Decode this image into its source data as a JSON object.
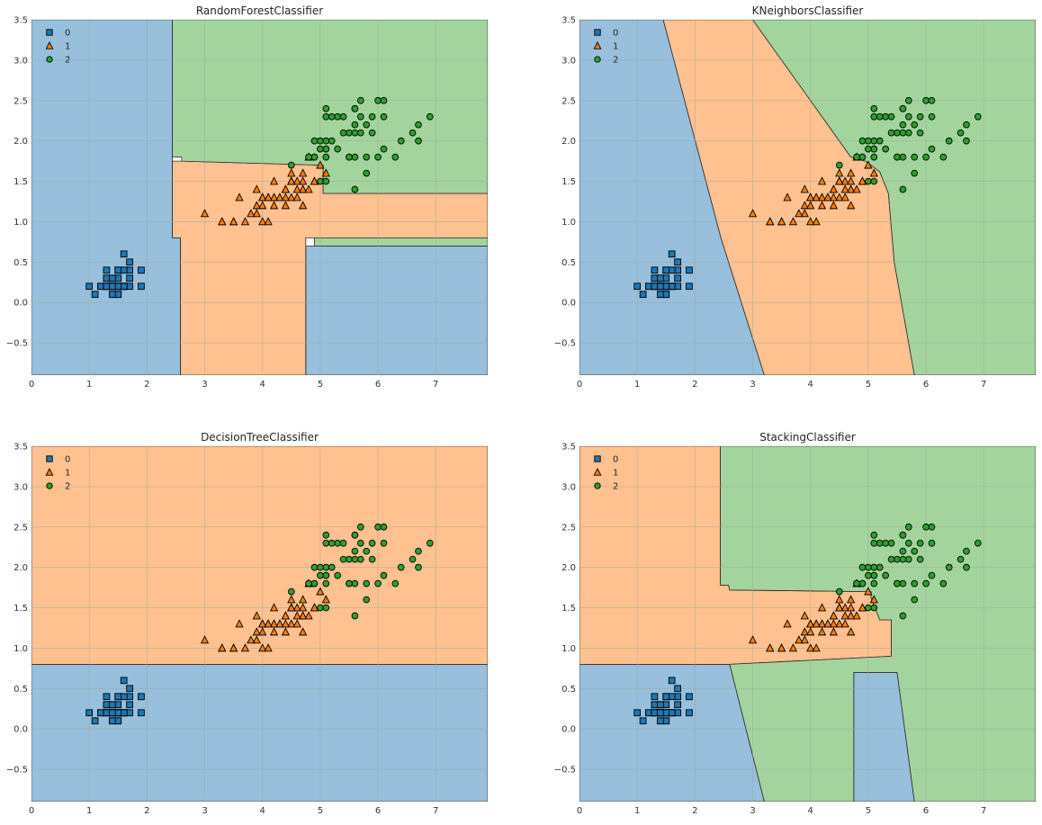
{
  "figure": {
    "class_colors": {
      "0": "#1f77b4",
      "1": "#ff7f0e",
      "2": "#2ca02c"
    },
    "region_colors": {
      "0": "#98bfdc",
      "1": "#ffc190",
      "2": "#a4d49e"
    },
    "grid_color": "#9aa59a"
  },
  "chart_data": [
    {
      "type": "scatter",
      "title": "RandomForestClassifier",
      "xlabel": "",
      "ylabel": "",
      "xlim": [
        0,
        7.9
      ],
      "ylim": [
        -0.9,
        3.5
      ],
      "x_ticks": [
        "0",
        "1",
        "2",
        "3",
        "4",
        "5",
        "6",
        "7"
      ],
      "y_ticks": [
        "−0.5",
        "0.0",
        "0.5",
        "1.0",
        "1.5",
        "2.0",
        "2.5",
        "3.0",
        "3.5"
      ],
      "grid": true,
      "legend": {
        "position": "top-left",
        "entries": [
          "0",
          "1",
          "2"
        ],
        "markers": [
          "square",
          "triangle",
          "circle"
        ]
      },
      "regions": [
        {
          "class": 0,
          "polygon": [
            [
              0,
              -0.9
            ],
            [
              2.58,
              -0.9
            ],
            [
              2.58,
              0.8
            ],
            [
              2.44,
              0.8
            ],
            [
              2.44,
              3.5
            ],
            [
              0,
              3.5
            ]
          ]
        },
        {
          "class": 0,
          "polygon": [
            [
              4.75,
              -0.9
            ],
            [
              7.9,
              -0.9
            ],
            [
              7.9,
              0.7
            ],
            [
              4.75,
              0.7
            ]
          ]
        },
        {
          "class": 1,
          "polygon": [
            [
              2.58,
              -0.9
            ],
            [
              4.75,
              -0.9
            ],
            [
              4.75,
              0.8
            ],
            [
              7.9,
              0.8
            ],
            [
              7.9,
              1.35
            ],
            [
              5.05,
              1.35
            ],
            [
              5.05,
              1.7
            ],
            [
              2.6,
              1.75
            ],
            [
              2.44,
              1.75
            ],
            [
              2.44,
              0.8
            ],
            [
              2.58,
              0.8
            ]
          ]
        },
        {
          "class": 2,
          "polygon": [
            [
              2.44,
              3.5
            ],
            [
              7.9,
              3.5
            ],
            [
              7.9,
              1.35
            ],
            [
              5.05,
              1.35
            ],
            [
              5.05,
              1.7
            ],
            [
              2.6,
              1.75
            ],
            [
              2.6,
              1.8
            ],
            [
              2.44,
              1.8
            ]
          ]
        },
        {
          "class": 2,
          "polygon": [
            [
              4.9,
              0.8
            ],
            [
              7.9,
              0.8
            ],
            [
              7.9,
              0.7
            ],
            [
              4.9,
              0.7
            ]
          ]
        }
      ]
    },
    {
      "type": "scatter",
      "title": "KNeighborsClassifier",
      "xlabel": "",
      "ylabel": "",
      "xlim": [
        0,
        7.9
      ],
      "ylim": [
        -0.9,
        3.5
      ],
      "x_ticks": [
        "0",
        "1",
        "2",
        "3",
        "4",
        "5",
        "6",
        "7"
      ],
      "y_ticks": [
        "−0.5",
        "0.0",
        "0.5",
        "1.0",
        "1.5",
        "2.0",
        "2.5",
        "3.0",
        "3.5"
      ],
      "grid": true,
      "legend": {
        "position": "top-left",
        "entries": [
          "0",
          "1",
          "2"
        ],
        "markers": [
          "square",
          "triangle",
          "circle"
        ]
      },
      "regions": [
        {
          "class": 0,
          "polygon": [
            [
              0,
              -0.9
            ],
            [
              3.2,
              -0.9
            ],
            [
              2.45,
              0.8
            ],
            [
              1.45,
              3.5
            ],
            [
              0,
              3.5
            ]
          ]
        },
        {
          "class": 1,
          "polygon": [
            [
              3.2,
              -0.9
            ],
            [
              5.8,
              -0.9
            ],
            [
              5.45,
              0.5
            ],
            [
              5.35,
              1.35
            ],
            [
              5.2,
              1.62
            ],
            [
              4.95,
              1.75
            ],
            [
              4.7,
              1.8
            ],
            [
              3.8,
              2.7
            ],
            [
              3.0,
              3.5
            ],
            [
              1.45,
              3.5
            ],
            [
              2.45,
              0.8
            ]
          ]
        },
        {
          "class": 2,
          "polygon": [
            [
              5.8,
              -0.9
            ],
            [
              7.9,
              -0.9
            ],
            [
              7.9,
              3.5
            ],
            [
              3.0,
              3.5
            ],
            [
              3.8,
              2.7
            ],
            [
              4.7,
              1.8
            ],
            [
              4.95,
              1.75
            ],
            [
              5.2,
              1.62
            ],
            [
              5.35,
              1.35
            ],
            [
              5.45,
              0.5
            ]
          ]
        }
      ]
    },
    {
      "type": "scatter",
      "title": "DecisionTreeClassifier",
      "xlabel": "",
      "ylabel": "",
      "xlim": [
        0,
        7.9
      ],
      "ylim": [
        -0.9,
        3.5
      ],
      "x_ticks": [
        "0",
        "1",
        "2",
        "3",
        "4",
        "5",
        "6",
        "7"
      ],
      "y_ticks": [
        "−0.5",
        "0.0",
        "0.5",
        "1.0",
        "1.5",
        "2.0",
        "2.5",
        "3.0",
        "3.5"
      ],
      "grid": true,
      "legend": {
        "position": "top-left",
        "entries": [
          "0",
          "1",
          "2"
        ],
        "markers": [
          "square",
          "triangle",
          "circle"
        ]
      },
      "regions": [
        {
          "class": 0,
          "polygon": [
            [
              0,
              -0.9
            ],
            [
              7.9,
              -0.9
            ],
            [
              7.9,
              0.8
            ],
            [
              0,
              0.8
            ]
          ]
        },
        {
          "class": 1,
          "polygon": [
            [
              0,
              0.8
            ],
            [
              7.9,
              0.8
            ],
            [
              7.9,
              3.5
            ],
            [
              0,
              3.5
            ]
          ]
        }
      ]
    },
    {
      "type": "scatter",
      "title": "StackingClassifier",
      "xlabel": "",
      "ylabel": "",
      "xlim": [
        0,
        7.9
      ],
      "ylim": [
        -0.9,
        3.5
      ],
      "x_ticks": [
        "0",
        "1",
        "2",
        "3",
        "4",
        "5",
        "6",
        "7"
      ],
      "y_ticks": [
        "−0.5",
        "0.0",
        "0.5",
        "1.0",
        "1.5",
        "2.0",
        "2.5",
        "3.0",
        "3.5"
      ],
      "grid": true,
      "legend": {
        "position": "top-left",
        "entries": [
          "0",
          "1",
          "2"
        ],
        "markers": [
          "square",
          "triangle",
          "circle"
        ]
      },
      "regions": [
        {
          "class": 0,
          "polygon": [
            [
              0,
              -0.9
            ],
            [
              3.2,
              -0.9
            ],
            [
              2.6,
              0.8
            ],
            [
              0,
              0.8
            ]
          ]
        },
        {
          "class": 0,
          "polygon": [
            [
              4.75,
              -0.9
            ],
            [
              5.8,
              -0.9
            ],
            [
              5.5,
              0.7
            ],
            [
              4.75,
              0.7
            ]
          ]
        },
        {
          "class": 1,
          "polygon": [
            [
              0,
              0.8
            ],
            [
              2.6,
              0.8
            ],
            [
              5.4,
              0.9
            ],
            [
              5.4,
              1.35
            ],
            [
              5.2,
              1.35
            ],
            [
              5.05,
              1.62
            ],
            [
              5.05,
              1.7
            ],
            [
              2.6,
              1.72
            ],
            [
              2.58,
              1.78
            ],
            [
              2.44,
              1.78
            ],
            [
              2.44,
              3.5
            ],
            [
              0,
              3.5
            ]
          ]
        },
        {
          "class": 2,
          "polygon": [
            [
              3.2,
              -0.9
            ],
            [
              4.75,
              -0.9
            ],
            [
              4.75,
              0.7
            ],
            [
              5.5,
              0.7
            ],
            [
              5.8,
              -0.9
            ],
            [
              7.9,
              -0.9
            ],
            [
              7.9,
              3.5
            ],
            [
              2.44,
              3.5
            ],
            [
              2.44,
              1.78
            ],
            [
              2.58,
              1.78
            ],
            [
              2.6,
              1.72
            ],
            [
              5.05,
              1.7
            ],
            [
              5.05,
              1.62
            ],
            [
              5.2,
              1.35
            ],
            [
              5.4,
              1.35
            ],
            [
              5.4,
              0.9
            ],
            [
              2.6,
              0.8
            ]
          ]
        }
      ]
    }
  ],
  "points": {
    "class_0": [
      [
        1.4,
        0.2
      ],
      [
        1.4,
        0.2
      ],
      [
        1.3,
        0.2
      ],
      [
        1.5,
        0.2
      ],
      [
        1.4,
        0.2
      ],
      [
        1.7,
        0.4
      ],
      [
        1.4,
        0.3
      ],
      [
        1.5,
        0.2
      ],
      [
        1.4,
        0.2
      ],
      [
        1.5,
        0.1
      ],
      [
        1.5,
        0.2
      ],
      [
        1.6,
        0.2
      ],
      [
        1.4,
        0.1
      ],
      [
        1.1,
        0.1
      ],
      [
        1.2,
        0.2
      ],
      [
        1.5,
        0.4
      ],
      [
        1.3,
        0.4
      ],
      [
        1.4,
        0.3
      ],
      [
        1.7,
        0.3
      ],
      [
        1.5,
        0.3
      ],
      [
        1.7,
        0.2
      ],
      [
        1.5,
        0.4
      ],
      [
        1.0,
        0.2
      ],
      [
        1.7,
        0.5
      ],
      [
        1.9,
        0.2
      ],
      [
        1.6,
        0.2
      ],
      [
        1.6,
        0.4
      ],
      [
        1.5,
        0.2
      ],
      [
        1.4,
        0.2
      ],
      [
        1.6,
        0.2
      ],
      [
        1.6,
        0.2
      ],
      [
        1.5,
        0.4
      ],
      [
        1.5,
        0.1
      ],
      [
        1.4,
        0.2
      ],
      [
        1.5,
        0.2
      ],
      [
        1.2,
        0.2
      ],
      [
        1.3,
        0.2
      ],
      [
        1.4,
        0.1
      ],
      [
        1.3,
        0.2
      ],
      [
        1.5,
        0.2
      ],
      [
        1.3,
        0.3
      ],
      [
        1.3,
        0.3
      ],
      [
        1.3,
        0.2
      ],
      [
        1.6,
        0.6
      ],
      [
        1.9,
        0.4
      ],
      [
        1.4,
        0.3
      ],
      [
        1.6,
        0.2
      ],
      [
        1.4,
        0.2
      ],
      [
        1.5,
        0.2
      ],
      [
        1.4,
        0.2
      ]
    ],
    "class_1": [
      [
        4.7,
        1.4
      ],
      [
        4.5,
        1.5
      ],
      [
        4.9,
        1.5
      ],
      [
        4.0,
        1.3
      ],
      [
        4.6,
        1.5
      ],
      [
        4.5,
        1.3
      ],
      [
        4.7,
        1.6
      ],
      [
        3.3,
        1.0
      ],
      [
        4.6,
        1.3
      ],
      [
        3.9,
        1.4
      ],
      [
        3.5,
        1.0
      ],
      [
        4.2,
        1.5
      ],
      [
        4.0,
        1.0
      ],
      [
        4.7,
        1.4
      ],
      [
        3.6,
        1.3
      ],
      [
        4.4,
        1.4
      ],
      [
        4.5,
        1.5
      ],
      [
        4.1,
        1.0
      ],
      [
        4.5,
        1.5
      ],
      [
        3.9,
        1.1
      ],
      [
        4.8,
        1.8
      ],
      [
        4.0,
        1.3
      ],
      [
        4.9,
        1.5
      ],
      [
        4.7,
        1.2
      ],
      [
        4.3,
        1.3
      ],
      [
        4.4,
        1.4
      ],
      [
        4.8,
        1.4
      ],
      [
        5.0,
        1.7
      ],
      [
        4.5,
        1.5
      ],
      [
        3.5,
        1.0
      ],
      [
        3.8,
        1.1
      ],
      [
        3.7,
        1.0
      ],
      [
        3.9,
        1.2
      ],
      [
        5.1,
        1.6
      ],
      [
        4.5,
        1.5
      ],
      [
        4.5,
        1.6
      ],
      [
        4.7,
        1.5
      ],
      [
        4.4,
        1.3
      ],
      [
        4.1,
        1.3
      ],
      [
        4.0,
        1.3
      ],
      [
        4.4,
        1.2
      ],
      [
        4.6,
        1.4
      ],
      [
        4.0,
        1.2
      ],
      [
        3.3,
        1.0
      ],
      [
        4.2,
        1.3
      ],
      [
        4.2,
        1.2
      ],
      [
        4.2,
        1.3
      ],
      [
        4.3,
        1.3
      ],
      [
        3.0,
        1.1
      ],
      [
        4.1,
        1.3
      ]
    ],
    "class_2": [
      [
        6.0,
        2.5
      ],
      [
        5.1,
        1.9
      ],
      [
        5.9,
        2.1
      ],
      [
        5.6,
        1.8
      ],
      [
        5.8,
        2.2
      ],
      [
        6.6,
        2.1
      ],
      [
        4.5,
        1.7
      ],
      [
        6.3,
        1.8
      ],
      [
        5.8,
        1.8
      ],
      [
        6.1,
        2.5
      ],
      [
        5.1,
        2.0
      ],
      [
        5.3,
        1.9
      ],
      [
        5.5,
        2.1
      ],
      [
        5.0,
        2.0
      ],
      [
        5.1,
        2.4
      ],
      [
        5.3,
        2.3
      ],
      [
        5.5,
        1.8
      ],
      [
        6.7,
        2.2
      ],
      [
        6.9,
        2.3
      ],
      [
        5.0,
        1.5
      ],
      [
        5.7,
        2.3
      ],
      [
        4.9,
        2.0
      ],
      [
        6.7,
        2.0
      ],
      [
        4.9,
        1.8
      ],
      [
        5.7,
        2.1
      ],
      [
        6.0,
        1.8
      ],
      [
        4.8,
        1.8
      ],
      [
        4.9,
        1.8
      ],
      [
        5.6,
        2.1
      ],
      [
        5.8,
        1.6
      ],
      [
        6.1,
        1.9
      ],
      [
        6.4,
        2.0
      ],
      [
        5.6,
        2.2
      ],
      [
        5.1,
        1.5
      ],
      [
        5.6,
        1.4
      ],
      [
        6.1,
        2.3
      ],
      [
        5.6,
        2.4
      ],
      [
        5.5,
        1.8
      ],
      [
        4.8,
        1.8
      ],
      [
        5.4,
        2.1
      ],
      [
        5.6,
        2.4
      ],
      [
        5.1,
        2.3
      ],
      [
        5.1,
        1.9
      ],
      [
        5.9,
        2.3
      ],
      [
        5.7,
        2.5
      ],
      [
        5.2,
        2.3
      ],
      [
        5.0,
        1.9
      ],
      [
        5.2,
        2.0
      ],
      [
        5.4,
        2.3
      ],
      [
        5.1,
        1.8
      ]
    ]
  }
}
